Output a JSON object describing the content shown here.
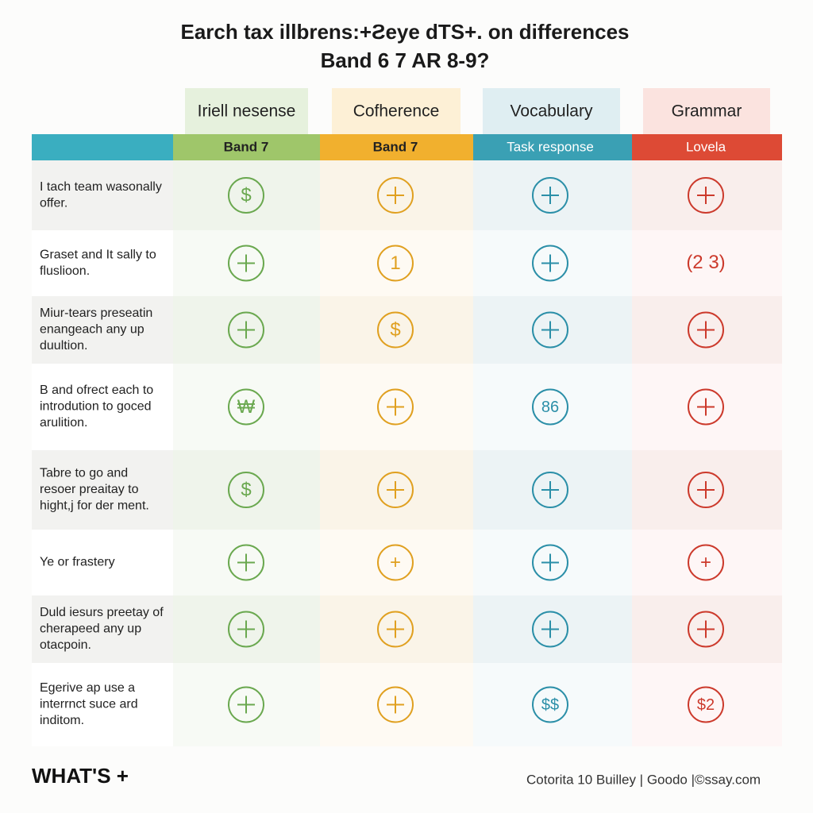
{
  "header": {
    "title": [
      "Earch tax illbrens:+Ƨeye dTS+. on differences",
      "Band 6 7 AR 8-9?"
    ]
  },
  "table": {
    "columns": [
      "Iriell nesense",
      "Cofherence",
      "Vocabulary",
      "Grammar"
    ],
    "subheaders": [
      "Band 7",
      "Band 7",
      "Task response",
      "Lovela"
    ],
    "rows": [
      {
        "label": [
          "I tach team wasonally",
          "offer."
        ],
        "cells": [
          "$",
          null,
          null,
          null
        ]
      },
      {
        "label": [
          "Graset and It sally to",
          "fluslioon."
        ],
        "cells": [
          null,
          "1",
          null,
          "(2 3)"
        ]
      },
      {
        "label": [
          "Miur-tears preseatin",
          "enangeach any up",
          "duultion."
        ],
        "cells": [
          null,
          "$",
          null,
          null
        ]
      },
      {
        "label": [
          "B and ofrect each to",
          "introdution to goced",
          "arulition."
        ],
        "cells": [
          "₩",
          null,
          "86",
          null
        ]
      },
      {
        "label": [
          "Tabre to go and",
          "resoer preaitay to",
          "hight,j for der ment."
        ],
        "cells": [
          "$",
          null,
          null,
          null
        ]
      },
      {
        "label": [
          "Ye or frastery"
        ],
        "cells": [
          null,
          "+",
          null,
          "+"
        ]
      },
      {
        "label": [
          "Duld iesurs preetay of",
          "cherapeed any up",
          "otacpoin."
        ],
        "cells": [
          null,
          null,
          null,
          null
        ]
      },
      {
        "label": [
          "Egerive ap use a",
          "interrnct suce ard",
          "inditom."
        ],
        "cells": [
          null,
          null,
          "$$",
          "$2"
        ]
      }
    ]
  },
  "footer": {
    "logo": "WHAT'S +",
    "credit": "Cotorita 10 Builley | Goodo |©ssay.com"
  }
}
